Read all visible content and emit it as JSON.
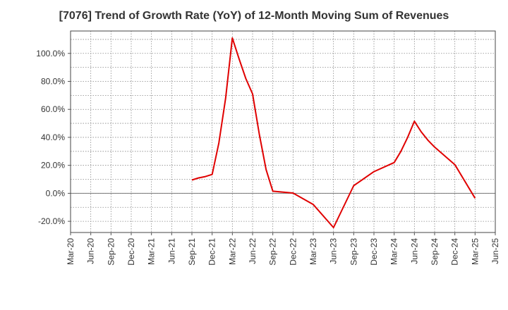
{
  "chart_data": {
    "type": "line",
    "title": "[7076]  Trend of Growth Rate (YoY) of 12-Month Moving Sum of Revenues",
    "xlabel": "",
    "ylabel": "",
    "x_ticks": [
      "Mar-20",
      "Jun-20",
      "Sep-20",
      "Dec-20",
      "Mar-21",
      "Jun-21",
      "Sep-21",
      "Dec-21",
      "Mar-22",
      "Jun-22",
      "Sep-22",
      "Dec-22",
      "Mar-23",
      "Jun-23",
      "Sep-23",
      "Dec-23",
      "Mar-24",
      "Jun-24",
      "Sep-24",
      "Dec-24",
      "Mar-25",
      "Jun-25"
    ],
    "y_ticks": [
      "100.0%",
      "80.0%",
      "60.0%",
      "40.0%",
      "20.0%",
      "0.0%",
      "-20.0%"
    ],
    "y_tick_values": [
      100,
      80,
      60,
      40,
      20,
      0,
      -20
    ],
    "ylim": [
      -28,
      116
    ],
    "grid": true,
    "series": [
      {
        "color": "#e00000",
        "x": [
          "Sep-21",
          "Oct-21",
          "Nov-21",
          "Dec-21",
          "Jan-22",
          "Feb-22",
          "Mar-22",
          "Apr-22",
          "May-22",
          "Jun-22",
          "Jul-22",
          "Aug-22",
          "Sep-22",
          "Dec-22",
          "Mar-23",
          "Jun-23",
          "Sep-23",
          "Dec-23",
          "Mar-24",
          "Apr-24",
          "May-24",
          "Jun-24",
          "Jul-24",
          "Aug-24",
          "Sep-24",
          "Dec-24",
          "Mar-25"
        ],
        "values": [
          9.5,
          11,
          12,
          13.5,
          36,
          68,
          111,
          96,
          82,
          71,
          42,
          17,
          1.5,
          0.2,
          -8,
          -24.5,
          5.5,
          15.5,
          22,
          30,
          40,
          51.5,
          44,
          38,
          33,
          20.5,
          -3.5
        ]
      }
    ]
  }
}
